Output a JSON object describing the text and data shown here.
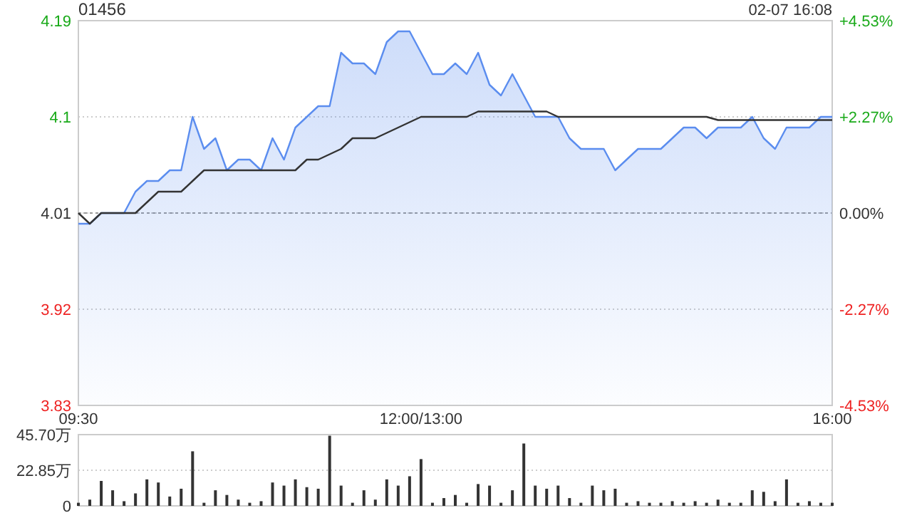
{
  "chart_data": [
    {
      "type": "area",
      "title": "01456",
      "annotations": [
        "02-07 16:08"
      ],
      "categories": [
        "09:30",
        null,
        null,
        null,
        null,
        null,
        null,
        null,
        null,
        null,
        null,
        null,
        null,
        null,
        null,
        null,
        null,
        null,
        null,
        null,
        null,
        null,
        null,
        null,
        null,
        null,
        null,
        null,
        null,
        null,
        "12:00/13:00",
        null,
        null,
        null,
        null,
        null,
        null,
        null,
        null,
        null,
        null,
        null,
        null,
        null,
        null,
        null,
        null,
        null,
        null,
        null,
        null,
        null,
        null,
        null,
        null,
        null,
        null,
        null,
        null,
        null,
        null,
        null,
        null,
        null,
        null,
        null,
        "16:00"
      ],
      "ylim": [
        3.83,
        4.19
      ],
      "yticks": [
        3.83,
        3.92,
        4.01,
        4.1,
        4.19
      ],
      "y2lim": [
        -4.53,
        4.53
      ],
      "y2ticks": [
        {
          "value": -4.53,
          "label": "-4.53%"
        },
        {
          "value": -2.27,
          "label": "-2.27%"
        },
        {
          "value": 0,
          "label": "0.00%"
        },
        {
          "value": 2.27,
          "label": "+2.27%"
        },
        {
          "value": 4.53,
          "label": "+4.53%"
        }
      ],
      "ref_lines": [
        {
          "axis": "y",
          "value": 4.01
        }
      ],
      "grid": "y",
      "series": [
        {
          "color": "#5b8def",
          "values": [
            4.0,
            4.0,
            4.01,
            4.01,
            4.01,
            4.03,
            4.04,
            4.04,
            4.05,
            4.05,
            4.1,
            4.07,
            4.08,
            4.05,
            4.06,
            4.06,
            4.05,
            4.08,
            4.06,
            4.09,
            4.1,
            4.11,
            4.11,
            4.16,
            4.15,
            4.15,
            4.14,
            4.17,
            4.18,
            4.18,
            4.16,
            4.14,
            4.14,
            4.15,
            4.14,
            4.16,
            4.13,
            4.12,
            4.14,
            4.12,
            4.1,
            4.1,
            4.1,
            4.08,
            4.07,
            4.07,
            4.07,
            4.05,
            4.06,
            4.07,
            4.07,
            4.07,
            4.08,
            4.09,
            4.09,
            4.08,
            4.09,
            4.09,
            4.09,
            4.1,
            4.08,
            4.07,
            4.09,
            4.09,
            4.09,
            4.1,
            4.1
          ]
        },
        {
          "type": "line",
          "color": "#333333",
          "values": [
            4.01,
            4.0,
            4.01,
            4.01,
            4.01,
            4.01,
            4.02,
            4.03,
            4.03,
            4.03,
            4.04,
            4.05,
            4.05,
            4.05,
            4.05,
            4.05,
            4.05,
            4.05,
            4.05,
            4.05,
            4.06,
            4.06,
            4.065,
            4.07,
            4.08,
            4.08,
            4.08,
            4.085,
            4.09,
            4.095,
            4.1,
            4.1,
            4.1,
            4.1,
            4.1,
            4.105,
            4.105,
            4.105,
            4.105,
            4.105,
            4.105,
            4.105,
            4.1,
            4.1,
            4.1,
            4.1,
            4.1,
            4.1,
            4.1,
            4.1,
            4.1,
            4.1,
            4.1,
            4.1,
            4.1,
            4.1,
            4.097,
            4.097,
            4.097,
            4.097,
            4.097,
            4.097,
            4.097,
            4.097,
            4.097,
            4.097,
            4.097
          ]
        }
      ]
    },
    {
      "type": "bar",
      "tick_labels": "y",
      "categories": [
        null,
        null,
        null,
        null,
        null,
        null,
        null,
        null,
        null,
        null,
        null,
        null,
        null,
        null,
        null,
        null,
        null,
        null,
        null,
        null,
        null,
        null,
        null,
        null,
        null,
        null,
        null,
        null,
        null,
        null,
        null,
        null,
        null,
        null,
        null,
        null,
        null,
        null,
        null,
        null,
        null,
        null,
        null,
        null,
        null,
        null,
        null,
        null,
        null,
        null,
        null,
        null,
        null,
        null,
        null,
        null,
        null,
        null,
        null,
        null,
        null,
        null,
        null,
        null,
        null,
        null,
        null
      ],
      "ylim": [
        0,
        45.7
      ],
      "yticks": [
        0,
        {
          "value": 22.85,
          "label": "22.85万"
        },
        {
          "value": 45.7,
          "label": "45.70万"
        }
      ],
      "grid": "y",
      "series": [
        {
          "color": "#333333",
          "values": [
            2,
            4,
            16,
            10,
            3,
            8,
            17,
            15,
            6,
            11,
            35,
            2,
            10,
            7,
            4,
            2,
            3,
            15,
            13,
            17,
            12,
            11,
            45,
            13,
            2,
            10,
            4,
            17,
            13,
            19,
            30,
            2,
            5,
            7,
            2,
            14,
            13,
            2,
            10,
            40,
            13,
            11,
            13,
            5,
            2,
            13,
            10,
            11,
            2,
            3,
            2,
            2,
            3,
            2,
            3,
            2,
            4,
            2,
            2,
            10,
            9,
            3,
            17,
            2,
            3,
            2,
            2
          ]
        }
      ]
    }
  ]
}
